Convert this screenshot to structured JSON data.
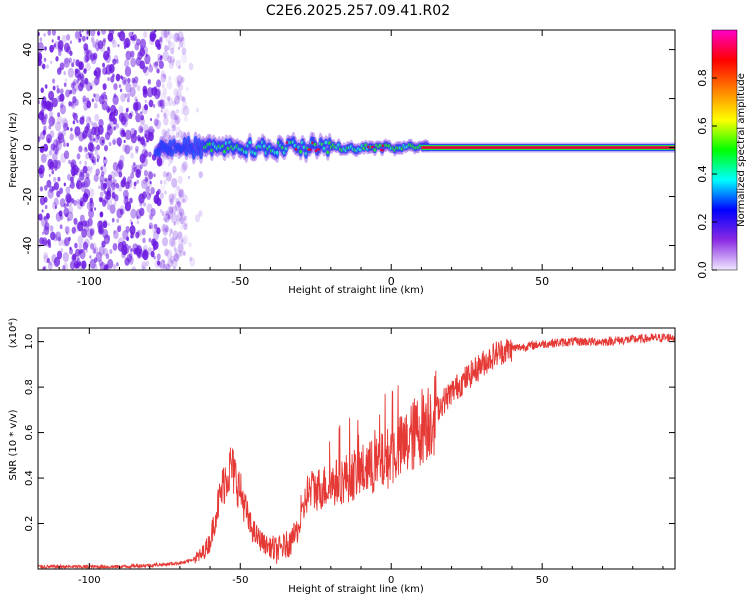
{
  "title": "C2E6.2025.257.09.41.R02",
  "colors": {
    "snr_line": "#e53935",
    "band_center": "#e8003a",
    "band_mid": "#23e23a",
    "band_edge": "#2244ff",
    "noise": "#6a18e0"
  },
  "chart_data": [
    {
      "type": "heatmap",
      "title": "C2E6.2025.257.09.41.R02",
      "xlabel": "Height of straight line (km)",
      "ylabel": "Frequency (Hz)",
      "xlim": [
        -117,
        94
      ],
      "ylim": [
        -50,
        48
      ],
      "xticks": [
        -100,
        -50,
        0,
        50
      ],
      "yticks": [
        -40,
        -20,
        0,
        20,
        40
      ],
      "xtick_labels": [
        "-100",
        "-50",
        "0",
        "50"
      ],
      "ytick_labels": [
        "-40",
        "-20",
        "0",
        "20",
        "40"
      ],
      "colorbar": {
        "label": "Normalized spectral amplitude",
        "range": [
          0,
          1
        ],
        "ticks": [
          0.0,
          0.2,
          0.4,
          0.6,
          0.8
        ],
        "tick_labels": [
          "0.0",
          "0.2",
          "0.4",
          "0.6",
          "0.8"
        ],
        "stops": [
          "#f0e8ff",
          "#8a2be2",
          "#0000ff",
          "#00ffff",
          "#00ff00",
          "#ffff00",
          "#ff8000",
          "#ff0000",
          "#ff00c8"
        ]
      },
      "description_points": {
        "noise_region_x": [
          -117,
          -68
        ],
        "scintillation_x": [
          -78,
          12
        ],
        "steady_line_x": [
          12,
          94
        ],
        "line_frequency_hz": 0
      }
    },
    {
      "type": "line",
      "xlabel": "Height of straight line (km)",
      "ylabel": "SNR (10 * v/v)",
      "yscale_label": "(x10⁴)",
      "xlim": [
        -117,
        94
      ],
      "ylim": [
        0,
        1.06
      ],
      "xticks": [
        -100,
        -50,
        0,
        50
      ],
      "yticks": [
        0.2,
        0.4,
        0.6,
        0.8,
        1.0
      ],
      "xtick_labels": [
        "-100",
        "-50",
        "0",
        "50"
      ],
      "ytick_labels": [
        "0.2",
        "0.4",
        "0.6",
        "0.8",
        "1.0"
      ],
      "series": [
        {
          "name": "SNR",
          "x": [
            -117,
            -90,
            -75,
            -68,
            -63,
            -60,
            -58,
            -55,
            -53,
            -51,
            -49,
            -47,
            -45,
            -42,
            -38,
            -33,
            -30,
            -28,
            -25,
            -20,
            -15,
            -10,
            -5,
            0,
            5,
            10,
            15,
            20,
            25,
            30,
            35,
            40,
            50,
            60,
            70,
            80,
            94
          ],
          "values": [
            0.01,
            0.01,
            0.02,
            0.03,
            0.06,
            0.12,
            0.25,
            0.4,
            0.45,
            0.38,
            0.3,
            0.2,
            0.15,
            0.11,
            0.08,
            0.12,
            0.2,
            0.33,
            0.35,
            0.37,
            0.4,
            0.43,
            0.45,
            0.5,
            0.55,
            0.63,
            0.7,
            0.78,
            0.84,
            0.9,
            0.95,
            0.97,
            0.99,
            1.0,
            1.0,
            1.01,
            1.02
          ]
        }
      ]
    }
  ]
}
